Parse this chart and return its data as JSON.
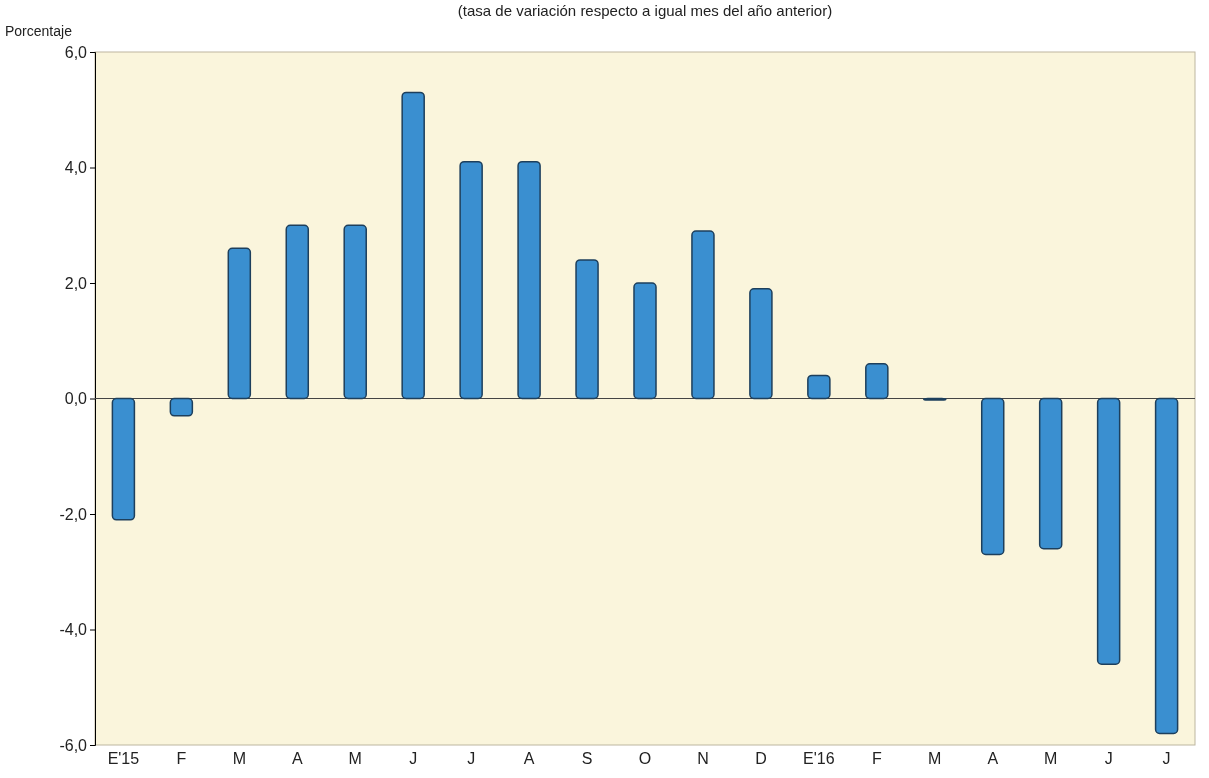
{
  "chart_data": {
    "type": "bar",
    "subtitle": "(tasa de variación respecto a igual mes del año anterior)",
    "ylabel": "Porcentaje",
    "categories": [
      "E'15",
      "F",
      "M",
      "A",
      "M",
      "J",
      "J",
      "A",
      "S",
      "O",
      "N",
      "D",
      "E'16",
      "F",
      "M",
      "A",
      "M",
      "J",
      "J"
    ],
    "values": [
      -2.1,
      -0.3,
      2.6,
      3.0,
      3.0,
      5.3,
      4.1,
      4.1,
      2.4,
      2.0,
      2.9,
      1.9,
      0.4,
      0.6,
      0.0,
      -2.7,
      -2.6,
      -4.6,
      -5.8
    ],
    "color": "#3a8fd0",
    "ylim": [
      -6,
      6
    ],
    "yticks": [
      {
        "value": -6,
        "label": "-6,0"
      },
      {
        "value": -4,
        "label": "-4,0"
      },
      {
        "value": -2,
        "label": "-2,0"
      },
      {
        "value": 0,
        "label": "0,0"
      },
      {
        "value": 2,
        "label": "2,0"
      },
      {
        "value": 4,
        "label": "4,0"
      },
      {
        "value": 6,
        "label": "6,0"
      }
    ]
  }
}
